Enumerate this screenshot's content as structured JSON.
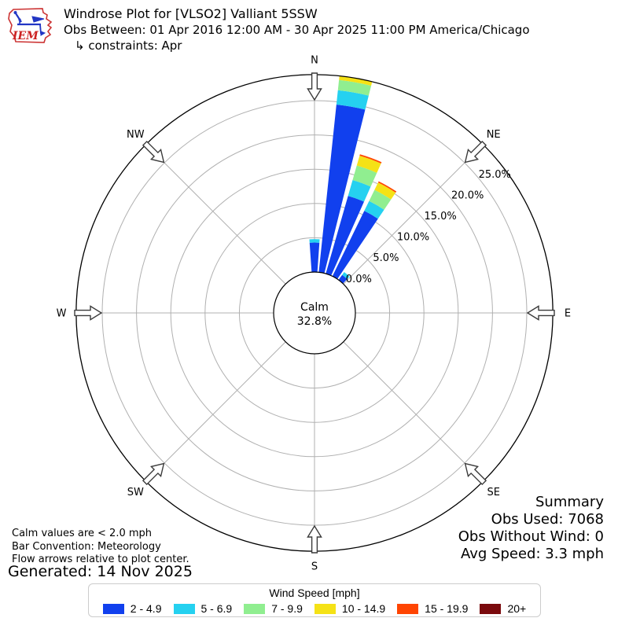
{
  "header": {
    "logo_text": "IEM",
    "title": "Windrose Plot for [VLSO2] Valliant 5SSW",
    "subtitle": "Obs Between: 01 Apr 2016 12:00 AM - 30 Apr 2025 11:00 PM America/Chicago",
    "constraints": "↳ constraints: Apr"
  },
  "chart_data": {
    "type": "windrose",
    "units": "mph",
    "calm": {
      "label": "Calm",
      "percent": "32.8%"
    },
    "direction_labels": [
      "N",
      "NE",
      "E",
      "SE",
      "S",
      "SW",
      "W",
      "NW"
    ],
    "ring_ticks": [
      "0.0%",
      "5.0%",
      "10.0%",
      "15.0%",
      "20.0%",
      "25.0%"
    ],
    "ring_values": [
      0,
      5,
      10,
      15,
      20,
      25
    ],
    "axis_max_pct": 28.8,
    "grid_color": "#b0b0b0",
    "speed_bins": [
      {
        "label": "2 - 4.9",
        "color": "#1140ee"
      },
      {
        "label": "5 - 6.9",
        "color": "#25d1f0"
      },
      {
        "label": "7 - 9.9",
        "color": "#90ee90"
      },
      {
        "label": "10 - 14.9",
        "color": "#f5e216"
      },
      {
        "label": "15 - 19.9",
        "color": "#ff4502"
      },
      {
        "label": "20+",
        "color": "#7a0a0d"
      }
    ],
    "bars": [
      {
        "direction_deg": 0,
        "values": [
          4.3,
          0.5,
          0,
          0,
          0,
          0
        ]
      },
      {
        "direction_deg": 10,
        "values": [
          24.6,
          2.1,
          1.5,
          0.6,
          0,
          0
        ]
      },
      {
        "direction_deg": 20,
        "values": [
          11.8,
          2.4,
          2.2,
          1.5,
          0.2,
          0
        ]
      },
      {
        "direction_deg": 30,
        "values": [
          10.6,
          1.6,
          1.8,
          1.2,
          0.2,
          0
        ]
      },
      {
        "direction_deg": 40,
        "values": [
          0.9,
          0.5,
          0,
          0,
          0,
          0
        ]
      }
    ],
    "bar_width_deg": 8
  },
  "annotations": {
    "calm_note": "Calm values are < 2.0 mph",
    "convention": "Bar Convention: Meteorology",
    "arrows_note": "Flow arrows relative to plot center.",
    "generated": "Generated: 14 Nov 2025"
  },
  "summary": {
    "title": "Summary",
    "obs_used": "Obs Used: 7068",
    "obs_without_wind": "Obs Without Wind: 0",
    "avg_speed": "Avg Speed: 3.3 mph"
  },
  "legend": {
    "title": "Wind Speed [mph]"
  }
}
